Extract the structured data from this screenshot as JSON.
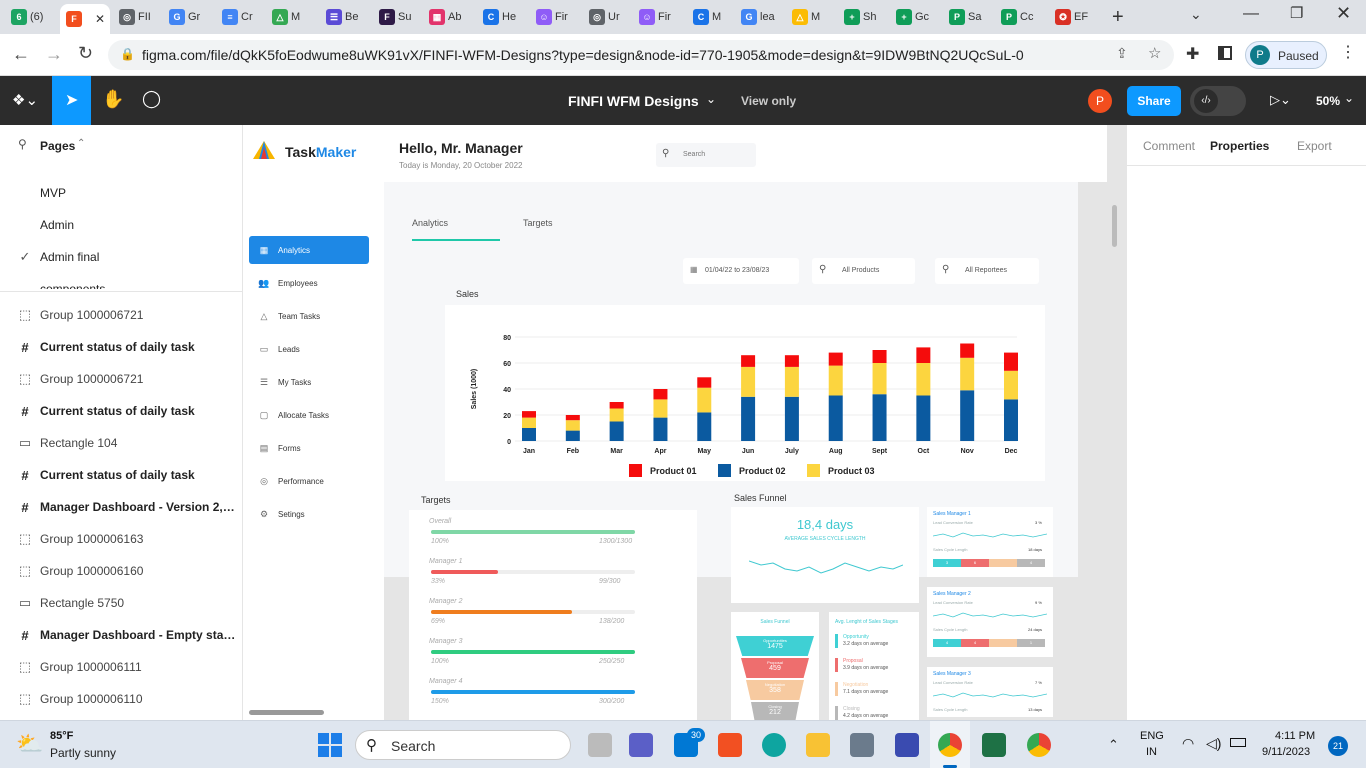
{
  "browser": {
    "tabs": [
      {
        "label": "(6)",
        "color": "#1da462",
        "glyph": "6"
      },
      {
        "label": "",
        "color": "#f24e1e",
        "glyph": "F",
        "active": true
      },
      {
        "label": "FII",
        "color": "#5f6368",
        "glyph": "◎"
      },
      {
        "label": "Gr",
        "color": "#4285f4",
        "glyph": "G"
      },
      {
        "label": "Cr",
        "color": "#4285f4",
        "glyph": "≡"
      },
      {
        "label": "M",
        "color": "#34a853",
        "glyph": "△"
      },
      {
        "label": "Be",
        "color": "#5b4bd6",
        "glyph": "☰"
      },
      {
        "label": "Su",
        "color": "#2e1a47",
        "glyph": "F"
      },
      {
        "label": "Ab",
        "color": "#e2336b",
        "glyph": "▦"
      },
      {
        "label": "He",
        "color": "#1a73e8",
        "glyph": "C"
      },
      {
        "label": "Fir",
        "color": "#8f5cf7",
        "glyph": "☺"
      },
      {
        "label": "Ur",
        "color": "#5f6368",
        "glyph": "◎"
      },
      {
        "label": "Fir",
        "color": "#8f5cf7",
        "glyph": "☺"
      },
      {
        "label": "M",
        "color": "#1a73e8",
        "glyph": "C"
      },
      {
        "label": "lea",
        "color": "#4285f4",
        "glyph": "G"
      },
      {
        "label": "M",
        "color": "#fbbc04",
        "glyph": "△"
      },
      {
        "label": "Sh",
        "color": "#0f9d58",
        "glyph": "+"
      },
      {
        "label": "Gc",
        "color": "#0f9d58",
        "glyph": "+"
      },
      {
        "label": "Sa",
        "color": "#0f9d58",
        "glyph": "P"
      },
      {
        "label": "Cc",
        "color": "#0f9d58",
        "glyph": "P"
      },
      {
        "label": "EF",
        "color": "#d93025",
        "glyph": "✪"
      }
    ],
    "new_tab": "+",
    "url": "figma.com/file/dQkK5foEodwume8uWK91vX/FINFI-WFM-Designs?type=design&node-id=770-1905&mode=design&t=9IDW9BtNQ2UQcSuL-0",
    "profile_initial": "P",
    "profile_status": "Paused"
  },
  "figma": {
    "file_name": "FINFI WFM Designs",
    "view_mode": "View only",
    "share_label": "Share",
    "avatar": "P",
    "zoom": "50%",
    "right_tabs": [
      "Comment",
      "Properties",
      "Export"
    ]
  },
  "layers": {
    "pages_label": "Pages",
    "pages": [
      {
        "label": "MVP",
        "checked": false
      },
      {
        "label": "Admin",
        "checked": false
      },
      {
        "label": "Admin final",
        "checked": true
      },
      {
        "label": "components",
        "checked": false
      }
    ],
    "items": [
      {
        "label": "Group 1000006721",
        "type": "group"
      },
      {
        "label": "Current status of daily task",
        "type": "frame"
      },
      {
        "label": "Group 1000006721",
        "type": "group"
      },
      {
        "label": "Current status of daily task",
        "type": "frame"
      },
      {
        "label": "Rectangle 104",
        "type": "rect"
      },
      {
        "label": "Current status of daily task",
        "type": "frame"
      },
      {
        "label": "Manager Dashboard - Version 2, if...",
        "type": "frame"
      },
      {
        "label": "Group 1000006163",
        "type": "group"
      },
      {
        "label": "Group 1000006160",
        "type": "group"
      },
      {
        "label": "Rectangle 5750",
        "type": "rect"
      },
      {
        "label": "Manager Dashboard - Empty state...",
        "type": "frame"
      },
      {
        "label": "Group 1000006111",
        "type": "group"
      },
      {
        "label": "Group 1000006110",
        "type": "group"
      }
    ]
  },
  "design": {
    "brand_a": "Task",
    "brand_b": "Maker",
    "greeting": "Hello, Mr. Manager",
    "date_line": "Today is Monday, 20 October 2022",
    "search_placeholder": "Search",
    "nav": [
      "Analytics",
      "Employees",
      "Team Tasks",
      "Leads",
      "My Tasks",
      "Allocate Tasks",
      "Forms",
      "Performance",
      "Setings"
    ],
    "nav_icons": [
      "▦",
      "👥",
      "△",
      "▭",
      "☰",
      "▢",
      "▤",
      "◎",
      "⚙"
    ],
    "tabs": [
      "Analytics",
      "Targets"
    ],
    "filters": {
      "date": "01/04/22 to 23/08/23",
      "products": "All Products",
      "reportees": "All Reportees"
    },
    "sales_title": "Sales",
    "targets_title": "Targets",
    "targets": [
      {
        "label": "Overall",
        "pct_label": "100%",
        "value": "1300/1300",
        "pct": 100,
        "color": "#7fd7a6"
      },
      {
        "label": "Manager 1",
        "pct_label": "33%",
        "value": "99/300",
        "pct": 33,
        "color": "#ef5a5a"
      },
      {
        "label": "Manager 2",
        "pct_label": "69%",
        "value": "138/200",
        "pct": 69,
        "color": "#ef7d1e"
      },
      {
        "label": "Manager 3",
        "pct_label": "100%",
        "value": "250/250",
        "pct": 100,
        "color": "#2fcc80"
      },
      {
        "label": "Manager 4",
        "pct_label": "150%",
        "value": "300/200",
        "pct": 100,
        "color": "#1e9be8"
      }
    ],
    "funnel_title": "Sales Funnel",
    "cycle_days": "18,4 days",
    "cycle_label": "AVERAGE SALES CYCLE LENGTH",
    "sales_managers": [
      {
        "name": "Sales Manager 1",
        "conv_label": "Lead Conversion Rate",
        "conv": "3 %",
        "cycle_label": "Sales Cycle Length",
        "cycle": "18 days",
        "segs": [
          "3",
          "6",
          "",
          "4"
        ]
      },
      {
        "name": "Sales Manager 2",
        "conv_label": "Lead Conversion Rate",
        "conv": "9 %",
        "cycle_label": "Sales Cycle Length",
        "cycle": "24 days",
        "segs": [
          "4",
          "4",
          "",
          "1"
        ]
      },
      {
        "name": "Sales Manager 3",
        "conv_label": "Lead Conversion Rate",
        "conv": "7 %",
        "cycle_label": "Sales Cycle Length",
        "cycle": "13 days",
        "segs": []
      }
    ],
    "funnel_card_title": "Sales Funnel",
    "funnel_stages": [
      {
        "name": "Opportunities",
        "value": "1475",
        "color": "#3fd0d4"
      },
      {
        "name": "Proposal",
        "value": "459",
        "color": "#ee6e6e"
      },
      {
        "name": "Negotiation",
        "value": "358",
        "color": "#f7caa0"
      },
      {
        "name": "Closing",
        "value": "212",
        "color": "#b8b8b8"
      }
    ],
    "stages_card_title": "Avg. Lenght of Sales Stages",
    "stages": [
      {
        "name": "Opportunity",
        "days": "3.2 days on average",
        "color": "#3fd0d4"
      },
      {
        "name": "Proposal",
        "days": "3.9 days on average",
        "color": "#ee6e6e"
      },
      {
        "name": "Negotiation",
        "days": "7.1 days on average",
        "color": "#f7caa0"
      },
      {
        "name": "Closing",
        "days": "4.2 days on average",
        "color": "#b8b8b8"
      }
    ]
  },
  "chart_data": {
    "type": "bar",
    "stacked": true,
    "title": "Sales",
    "xlabel": "",
    "ylabel": "Sales (1000)",
    "ylim": [
      0,
      80
    ],
    "yticks": [
      0,
      20,
      40,
      60,
      80
    ],
    "categories": [
      "Jan",
      "Feb",
      "Mar",
      "Apr",
      "May",
      "Jun",
      "July",
      "Aug",
      "Sept",
      "Oct",
      "Nov",
      "Dec"
    ],
    "series": [
      {
        "name": "Product 02",
        "color": "#0b5aa0",
        "values": [
          10,
          8,
          15,
          18,
          22,
          34,
          34,
          35,
          36,
          35,
          39,
          32
        ]
      },
      {
        "name": "Product 03",
        "color": "#fcd53f",
        "values": [
          8,
          8,
          10,
          14,
          19,
          23,
          23,
          23,
          24,
          25,
          25,
          22
        ]
      },
      {
        "name": "Product 01",
        "color": "#f50c0c",
        "values": [
          5,
          4,
          5,
          8,
          8,
          9,
          9,
          10,
          10,
          12,
          11,
          14
        ]
      }
    ],
    "legend": [
      "Product 01",
      "Product 02",
      "Product 03"
    ],
    "legend_colors": [
      "#f50c0c",
      "#0b5aa0",
      "#fcd53f"
    ]
  },
  "system": {
    "temp": "85°F",
    "weather": "Partly sunny",
    "search_label": "Search",
    "lang_a": "ENG",
    "lang_b": "IN",
    "time": "4:11 PM",
    "date": "9/11/2023",
    "notifications": "21",
    "mail_badge": "30",
    "help": "?"
  }
}
